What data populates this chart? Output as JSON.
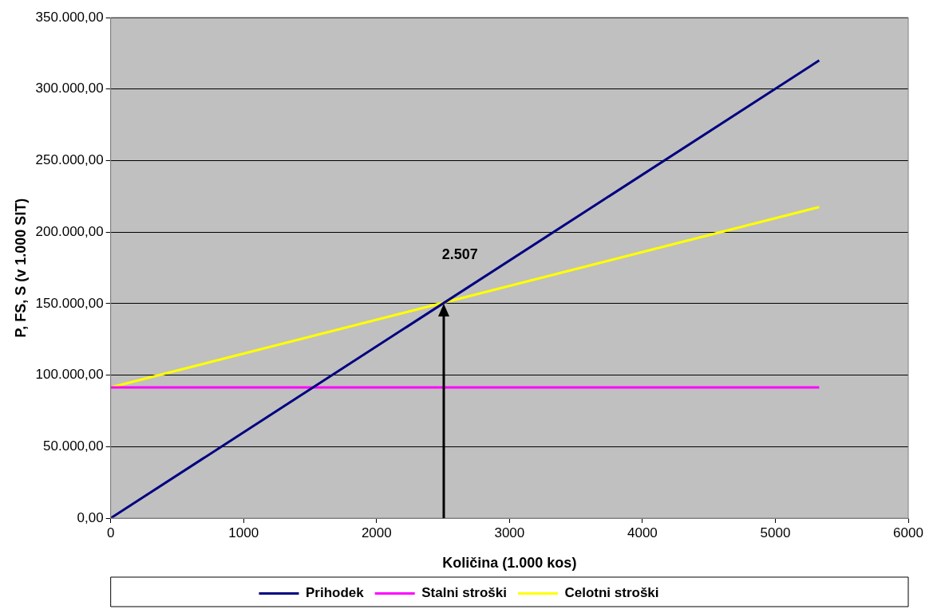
{
  "chart_data": {
    "type": "line",
    "xlabel": "Količina (1.000 kos)",
    "ylabel": "P, FS, S (v 1.000 SIT)",
    "x": [
      0,
      5330
    ],
    "series": [
      {
        "name": "Prihodek",
        "color": "#000080",
        "values": [
          0,
          320000
        ]
      },
      {
        "name": "Stalni stroški",
        "color": "#ff00ff",
        "values": [
          91400,
          91400
        ]
      },
      {
        "name": "Celotni stroški",
        "color": "#ffff00",
        "values": [
          91400,
          217500
        ]
      }
    ],
    "xlim": [
      0,
      6000
    ],
    "xticks": [
      0,
      1000,
      2000,
      3000,
      4000,
      5000,
      6000
    ],
    "ylim": [
      0,
      350000
    ],
    "yticks": [
      {
        "value": 0,
        "label": "0,00"
      },
      {
        "value": 50000,
        "label": "50.000,00"
      },
      {
        "value": 100000,
        "label": "100.000,00"
      },
      {
        "value": 150000,
        "label": "150.000,00"
      },
      {
        "value": 200000,
        "label": "200.000,00"
      },
      {
        "value": 250000,
        "label": "250.000,00"
      },
      {
        "value": 300000,
        "label": "300.000,00"
      },
      {
        "value": 350000,
        "label": "350.000,00"
      }
    ],
    "annotations": [
      {
        "text": "2.507",
        "x": 2507,
        "y": 150000
      }
    ],
    "grid": "y",
    "legend": "bottom",
    "marker": "none",
    "line_style": "solid"
  }
}
